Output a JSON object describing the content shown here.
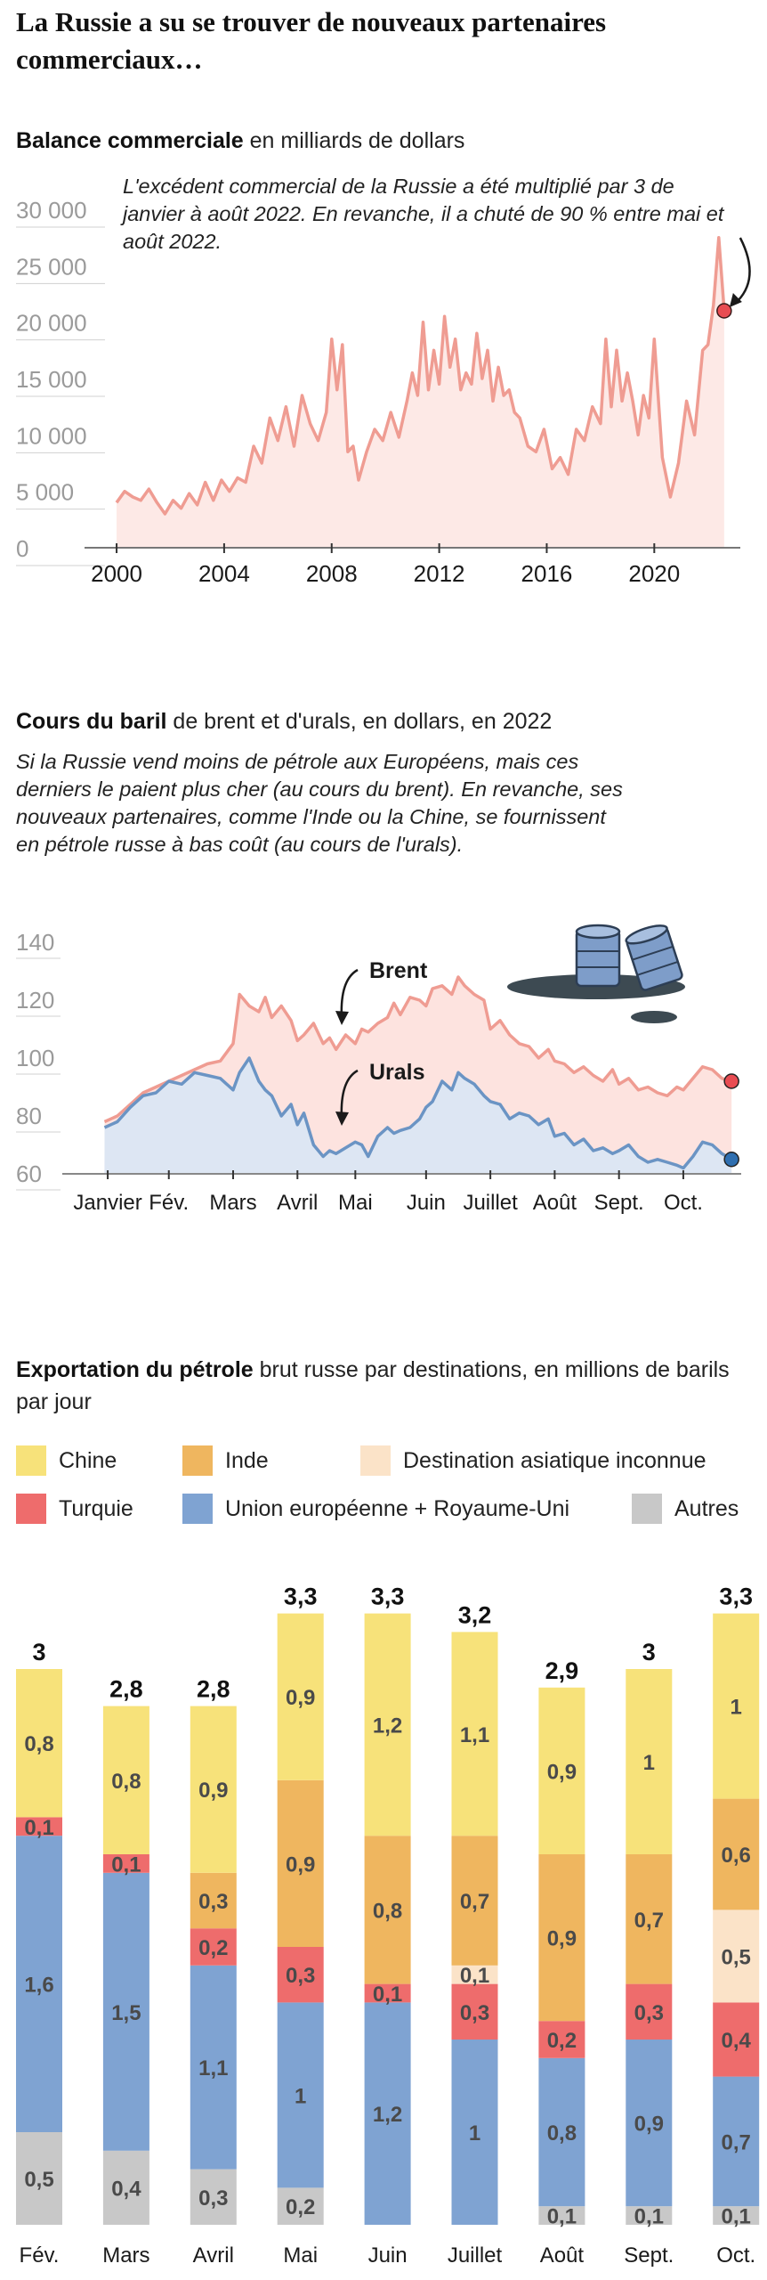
{
  "main_title": "La Russie a su se trouver de nouveaux partenaires commerciaux…",
  "section1": {
    "title_bold": "Balance commerciale",
    "title_rest": " en milliards de dollars",
    "note": "L'excédent commercial de la Russie a été multiplié par 3 de janvier à août 2022. En revanche, il a chuté de 90 % entre mai et août 2022."
  },
  "section2": {
    "title_bold": "Cours du baril",
    "title_rest": " de brent et d'urals, en dollars, en 2022",
    "note": "Si la Russie vend moins de pétrole aux Européens, mais ces derniers le paient plus cher (au cours du brent). En revanche, ses nouveaux partenaires, comme l'Inde ou la Chine, se fournissent en pétrole russe à bas coût (au cours de l'urals)."
  },
  "section3": {
    "title_bold": "Exportation du pétrole",
    "title_rest": " brut russe par destinations, en millions de barils par jour"
  },
  "colors": {
    "balance_line": "#ef9c92",
    "balance_fill": "#fde9e6",
    "brent_line": "#ef9c92",
    "brent_fill": "#fde3df",
    "urals_line": "#6b94c4",
    "urals_fill": "#dde6f3",
    "brent_dot": "#e84c52",
    "urals_dot": "#2f6fb0",
    "chine": "#f7e27a",
    "inde": "#efb65f",
    "asie_inconnue": "#fbe3c8",
    "turquie": "#ee6c6c",
    "ue_ru": "#7fa3d2",
    "autres": "#c8c8c8"
  },
  "chart_data": [
    {
      "type": "area",
      "ylim": [
        0,
        30000
      ],
      "yticks": [
        "30 000",
        "25 000",
        "20 000",
        "15 000",
        "10 000",
        "5 000",
        "0"
      ],
      "ytick_values": [
        30000,
        25000,
        20000,
        15000,
        10000,
        5000,
        0
      ],
      "xticks": [
        "2000",
        "2004",
        "2008",
        "2012",
        "2016",
        "2020"
      ],
      "xtick_values": [
        2000,
        2004,
        2008,
        2012,
        2016,
        2020
      ],
      "xlim": [
        1999.8,
        2023.2
      ],
      "highlight": {
        "x": 2022.6,
        "y": 21000
      },
      "x": [
        2000.0,
        2000.3,
        2000.6,
        2000.9,
        2001.2,
        2001.5,
        2001.8,
        2002.1,
        2002.4,
        2002.7,
        2003.0,
        2003.3,
        2003.6,
        2003.9,
        2004.2,
        2004.5,
        2004.8,
        2005.1,
        2005.4,
        2005.7,
        2006.0,
        2006.3,
        2006.6,
        2006.9,
        2007.2,
        2007.5,
        2007.8,
        2008.0,
        2008.2,
        2008.4,
        2008.6,
        2008.8,
        2009.0,
        2009.3,
        2009.6,
        2009.9,
        2010.2,
        2010.5,
        2010.8,
        2011.0,
        2011.2,
        2011.4,
        2011.6,
        2011.8,
        2012.0,
        2012.2,
        2012.4,
        2012.6,
        2012.8,
        2013.0,
        2013.2,
        2013.4,
        2013.6,
        2013.8,
        2014.0,
        2014.2,
        2014.4,
        2014.6,
        2014.8,
        2015.0,
        2015.3,
        2015.6,
        2015.9,
        2016.2,
        2016.5,
        2016.8,
        2017.1,
        2017.4,
        2017.7,
        2018.0,
        2018.2,
        2018.4,
        2018.6,
        2018.8,
        2019.0,
        2019.2,
        2019.4,
        2019.6,
        2019.8,
        2020.0,
        2020.3,
        2020.6,
        2020.9,
        2021.2,
        2021.5,
        2021.8,
        2022.0,
        2022.2,
        2022.4,
        2022.6
      ],
      "y": [
        4000,
        5000,
        4500,
        4200,
        5200,
        4000,
        3000,
        4200,
        3500,
        4800,
        3800,
        5800,
        4200,
        6000,
        5000,
        6200,
        5800,
        9000,
        7500,
        11500,
        9500,
        12500,
        9000,
        13500,
        11000,
        9500,
        12000,
        18500,
        14000,
        18000,
        8500,
        9000,
        6000,
        8500,
        10500,
        9500,
        12000,
        9800,
        13000,
        15500,
        13500,
        20000,
        14000,
        17500,
        14500,
        20500,
        16000,
        18500,
        14000,
        15500,
        14500,
        19000,
        15000,
        17500,
        13000,
        16000,
        13500,
        14000,
        12000,
        11500,
        9000,
        8500,
        10500,
        7000,
        8000,
        6500,
        10500,
        9500,
        12500,
        11000,
        18500,
        12500,
        17500,
        13000,
        15500,
        13000,
        10000,
        13500,
        11500,
        18500,
        8000,
        4500,
        7500,
        13000,
        10000,
        17500,
        18000,
        21500,
        27500,
        21000
      ]
    },
    {
      "type": "line",
      "title": "",
      "ylim": [
        60,
        140
      ],
      "yticks": [
        "140",
        "120",
        "100",
        "80",
        "60"
      ],
      "ytick_values": [
        140,
        120,
        100,
        80,
        60
      ],
      "categories": [
        "Janvier",
        "Fév.",
        "Mars",
        "Avril",
        "Mai",
        "Juin",
        "Juillet",
        "Août",
        "Sept.",
        "Oct."
      ],
      "category_positions": [
        0.05,
        1.0,
        2.0,
        3.0,
        3.9,
        5.0,
        6.0,
        7.0,
        8.0,
        9.0
      ],
      "xlim": [
        -0.2,
        9.9
      ],
      "series": [
        {
          "name": "Brent",
          "x": [
            0.0,
            0.2,
            0.4,
            0.6,
            0.8,
            1.0,
            1.2,
            1.4,
            1.6,
            1.8,
            2.0,
            2.1,
            2.25,
            2.4,
            2.5,
            2.6,
            2.75,
            2.9,
            3.0,
            3.1,
            3.25,
            3.4,
            3.5,
            3.6,
            3.75,
            3.9,
            4.0,
            4.1,
            4.25,
            4.4,
            4.5,
            4.6,
            4.75,
            4.9,
            5.0,
            5.1,
            5.25,
            5.4,
            5.5,
            5.6,
            5.75,
            5.9,
            6.0,
            6.15,
            6.3,
            6.45,
            6.6,
            6.75,
            6.9,
            7.0,
            7.15,
            7.3,
            7.45,
            7.6,
            7.75,
            7.9,
            8.0,
            8.15,
            8.3,
            8.45,
            8.6,
            8.75,
            8.9,
            9.0,
            9.15,
            9.3,
            9.45,
            9.6,
            9.75
          ],
          "y": [
            78,
            80,
            84,
            88,
            90,
            92,
            94,
            96,
            98,
            99,
            105,
            122,
            118,
            116,
            121,
            114,
            118,
            113,
            106,
            108,
            112,
            105,
            107,
            103,
            108,
            105,
            110,
            109,
            112,
            114,
            119,
            115,
            121,
            120,
            118,
            124,
            125,
            122,
            128,
            125,
            122,
            120,
            110,
            113,
            108,
            105,
            104,
            100,
            103,
            99,
            98,
            95,
            97,
            94,
            92,
            96,
            91,
            93,
            89,
            90,
            88,
            87,
            90,
            89,
            93,
            97,
            96,
            93,
            92
          ]
        },
        {
          "name": "Urals",
          "x": [
            0.0,
            0.2,
            0.4,
            0.6,
            0.8,
            1.0,
            1.2,
            1.4,
            1.6,
            1.8,
            2.0,
            2.1,
            2.25,
            2.4,
            2.5,
            2.6,
            2.75,
            2.9,
            3.0,
            3.1,
            3.25,
            3.4,
            3.5,
            3.6,
            3.75,
            3.9,
            4.0,
            4.1,
            4.25,
            4.4,
            4.5,
            4.6,
            4.75,
            4.9,
            5.0,
            5.1,
            5.25,
            5.4,
            5.5,
            5.6,
            5.75,
            5.9,
            6.0,
            6.15,
            6.3,
            6.45,
            6.6,
            6.75,
            6.9,
            7.0,
            7.15,
            7.3,
            7.45,
            7.6,
            7.75,
            7.9,
            8.0,
            8.15,
            8.3,
            8.45,
            8.6,
            8.75,
            8.9,
            9.0,
            9.15,
            9.3,
            9.45,
            9.6,
            9.75
          ],
          "y": [
            76,
            78,
            83,
            87,
            88,
            92,
            91,
            95,
            94,
            93,
            89,
            95,
            100,
            92,
            89,
            87,
            80,
            84,
            77,
            81,
            70,
            66,
            68,
            67,
            69,
            71,
            70,
            66,
            73,
            76,
            74,
            75,
            76,
            79,
            83,
            85,
            92,
            89,
            95,
            93,
            91,
            87,
            85,
            84,
            79,
            81,
            80,
            77,
            79,
            73,
            74,
            70,
            72,
            68,
            69,
            67,
            68,
            70,
            66,
            64,
            65,
            64,
            63,
            62,
            66,
            71,
            70,
            67,
            65
          ]
        }
      ]
    },
    {
      "type": "bar",
      "stacked": true,
      "categories": [
        "Fév.",
        "Mars",
        "Avril",
        "Mai",
        "Juin",
        "Juillet",
        "Août",
        "Sept.",
        "Oct."
      ],
      "totals": [
        "3",
        "2,8",
        "2,8",
        "3,3",
        "3,3",
        "3,2",
        "2,9",
        "3",
        "3,3"
      ],
      "total_values": [
        3.0,
        2.8,
        2.8,
        3.3,
        3.3,
        3.2,
        2.9,
        3.0,
        3.3
      ],
      "series": [
        {
          "name": "Autres",
          "values": [
            0.5,
            0.4,
            0.3,
            0.2,
            0,
            0,
            0.1,
            0.1,
            0.1
          ],
          "labels": [
            "0,5",
            "0,4",
            "0,3",
            "0,2",
            "",
            "",
            "0,1",
            "0,1",
            "0,1"
          ]
        },
        {
          "name": "Union européenne + Royaume-Uni",
          "values": [
            1.6,
            1.5,
            1.1,
            1.0,
            1.2,
            1.0,
            0.8,
            0.9,
            0.7
          ],
          "labels": [
            "1,6",
            "1,5",
            "1,1",
            "1",
            "1,2",
            "1",
            "0,8",
            "0,9",
            "0,7"
          ]
        },
        {
          "name": "Turquie",
          "values": [
            0.1,
            0.1,
            0.2,
            0.3,
            0.1,
            0.3,
            0.2,
            0.3,
            0.4
          ],
          "labels": [
            "0,1",
            "0,1",
            "0,2",
            "0,3",
            "0,1",
            "0,3",
            "0,2",
            "0,3",
            "0,4"
          ]
        },
        {
          "name": "Destination asiatique inconnue",
          "values": [
            0,
            0,
            0,
            0,
            0,
            0.1,
            0,
            0,
            0.5
          ],
          "labels": [
            "",
            "",
            "",
            "",
            "",
            "0,1",
            "",
            "",
            "0,5"
          ]
        },
        {
          "name": "Inde",
          "values": [
            0,
            0,
            0.3,
            0.9,
            0.8,
            0.7,
            0.9,
            0.7,
            0.6
          ],
          "labels": [
            "",
            "",
            "0,3",
            "0,9",
            "0,8",
            "0,7",
            "0,9",
            "0,7",
            "0,6"
          ]
        },
        {
          "name": "Chine",
          "values": [
            0.8,
            0.8,
            0.9,
            0.9,
            1.2,
            1.1,
            0.9,
            1.0,
            1.0
          ],
          "labels": [
            "0,8",
            "0,8",
            "0,9",
            "0,9",
            "1,2",
            "1,1",
            "0,9",
            "1",
            "1"
          ]
        }
      ],
      "legend": [
        "Chine",
        "Inde",
        "Destination asiatique inconnue",
        "Turquie",
        "Union européenne + Royaume-Uni",
        "Autres"
      ]
    }
  ]
}
